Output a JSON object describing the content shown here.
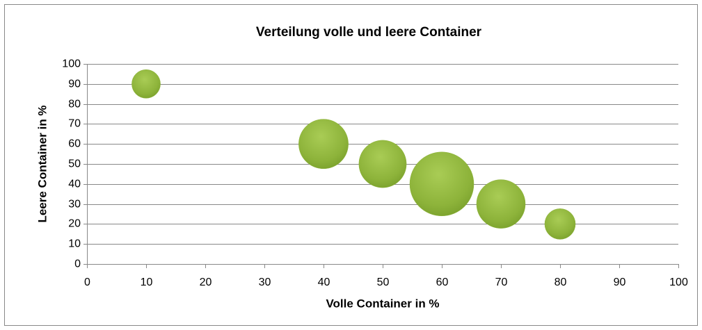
{
  "chart_data": {
    "type": "bubble",
    "title": "Verteilung volle und leere Container",
    "xlabel": "Volle Container in %",
    "ylabel": "Leere Container in %",
    "x": [
      10,
      40,
      50,
      60,
      70,
      80
    ],
    "series": [
      {
        "color": "#8db33a",
        "values": [
          90,
          60,
          50,
          40,
          30,
          20
        ],
        "sizes": [
          20,
          60,
          55,
          100,
          58,
          23
        ]
      }
    ],
    "xlim": [
      0,
      100
    ],
    "xticks": [
      0,
      10,
      20,
      30,
      40,
      50,
      60,
      70,
      80,
      90,
      100
    ],
    "ylim": [
      0,
      100
    ],
    "yticks": [
      0,
      10,
      20,
      30,
      40,
      50,
      60,
      70,
      80,
      90,
      100
    ],
    "grid": true
  }
}
